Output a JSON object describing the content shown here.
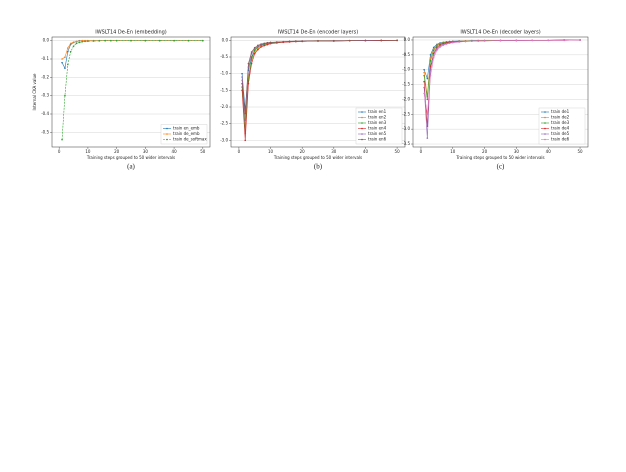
{
  "chart_data": [
    {
      "type": "line",
      "title": "IWSLT14 De-En (embedding)",
      "xlabel": "Training steps grouped to 50 wider intervals",
      "ylabel": "Internal CKA value",
      "caption": "(a)",
      "x": [
        1,
        2,
        3,
        4,
        5,
        6,
        7,
        8,
        9,
        10,
        12,
        14,
        16,
        18,
        20,
        25,
        30,
        35,
        40,
        45,
        50
      ],
      "xlim": [
        -2.5,
        52.5
      ],
      "xticks": [
        0,
        10,
        20,
        30,
        40,
        50
      ],
      "ylim": [
        -0.58,
        0.02
      ],
      "yticks": [
        {
          "value": 0,
          "label": "0.0"
        },
        -0.1,
        -0.2,
        -0.3,
        -0.4,
        -0.5
      ],
      "grid": true,
      "legend": "lower right",
      "series": [
        {
          "name": "train en_emb",
          "color": "#1f77b4",
          "style": "solid",
          "values": [
            -0.12,
            -0.15,
            -0.06,
            -0.02,
            -0.01,
            -0.005,
            0,
            0,
            0,
            0,
            0,
            0,
            0,
            0,
            0,
            0,
            0,
            0,
            0,
            0,
            0
          ]
        },
        {
          "name": "train de_emb",
          "color": "#ff7f0e",
          "style": "solid",
          "values": [
            -0.1,
            -0.09,
            -0.04,
            -0.015,
            -0.008,
            -0.004,
            -0.002,
            0,
            0,
            0,
            0,
            0,
            0,
            0,
            0,
            0,
            0,
            0,
            0,
            0,
            0
          ]
        },
        {
          "name": "train de_softmax",
          "color": "#2ca02c",
          "style": "dashed",
          "values": [
            -0.54,
            -0.3,
            -0.13,
            -0.06,
            -0.03,
            -0.015,
            -0.01,
            -0.006,
            -0.004,
            -0.003,
            -0.002,
            -0.001,
            0,
            0,
            0,
            0,
            0,
            0,
            0,
            0,
            0
          ]
        }
      ]
    },
    {
      "type": "line",
      "title": "IWSLT14 De-En (encoder layers)",
      "xlabel": "Training steps grouped to 50 wider intervals",
      "caption": "(b)",
      "x": [
        1,
        2,
        3,
        4,
        5,
        6,
        7,
        8,
        9,
        10,
        12,
        14,
        16,
        18,
        20,
        25,
        30,
        35,
        40,
        45,
        50
      ],
      "xlim": [
        -2.5,
        52.5
      ],
      "xticks": [
        0,
        10,
        20,
        30,
        40,
        50
      ],
      "ylim": [
        -3.2,
        0.1
      ],
      "yticks": [
        {
          "value": 0,
          "label": "0.0"
        },
        -0.5,
        {
          "value": -1,
          "label": "-1.0"
        },
        -1.5,
        {
          "value": -2,
          "label": "-2.0"
        },
        -2.5,
        {
          "value": -3,
          "label": "-3.0"
        }
      ],
      "grid": true,
      "legend": "lower right",
      "series": [
        {
          "name": "train en1",
          "color": "#1f77b4",
          "style": "solid",
          "values": [
            -1.0,
            -2.1,
            -0.9,
            -0.5,
            -0.3,
            -0.2,
            -0.15,
            -0.12,
            -0.1,
            -0.08,
            -0.06,
            -0.05,
            -0.04,
            -0.03,
            -0.03,
            -0.02,
            -0.02,
            -0.01,
            -0.01,
            0,
            0
          ]
        },
        {
          "name": "train en2",
          "color": "#ff7f0e",
          "style": "solid",
          "values": [
            -1.2,
            -2.6,
            -1.1,
            -0.6,
            -0.35,
            -0.25,
            -0.18,
            -0.14,
            -0.11,
            -0.09,
            -0.07,
            -0.05,
            -0.04,
            -0.03,
            -0.03,
            -0.02,
            -0.02,
            -0.01,
            -0.01,
            0,
            0
          ]
        },
        {
          "name": "train en3",
          "color": "#2ca02c",
          "style": "solid",
          "values": [
            -1.4,
            -2.8,
            -1.2,
            -0.55,
            -0.3,
            -0.2,
            -0.15,
            -0.12,
            -0.1,
            -0.08,
            -0.06,
            -0.05,
            -0.04,
            -0.03,
            -0.03,
            -0.02,
            -0.02,
            -0.01,
            -0.01,
            0,
            0
          ]
        },
        {
          "name": "train en4",
          "color": "#d62728",
          "style": "solid",
          "values": [
            -1.5,
            -3.0,
            -1.3,
            -0.7,
            -0.4,
            -0.28,
            -0.2,
            -0.16,
            -0.13,
            -0.1,
            -0.08,
            -0.06,
            -0.05,
            -0.04,
            -0.03,
            -0.02,
            -0.02,
            -0.01,
            -0.01,
            -0.01,
            0
          ]
        },
        {
          "name": "train en5",
          "color": "#9467bd",
          "style": "solid",
          "values": [
            -1.1,
            -2.4,
            -0.8,
            -0.4,
            -0.25,
            -0.18,
            -0.13,
            -0.1,
            -0.08,
            -0.07,
            -0.05,
            -0.04,
            -0.03,
            -0.03,
            -0.02,
            -0.02,
            -0.01,
            -0.01,
            -0.01,
            0,
            0
          ]
        },
        {
          "name": "train en6",
          "color": "#8c564b",
          "style": "solid",
          "values": [
            -1.3,
            -2.2,
            -0.7,
            -0.35,
            -0.22,
            -0.15,
            -0.11,
            -0.09,
            -0.07,
            -0.06,
            -0.05,
            -0.04,
            -0.03,
            -0.02,
            -0.02,
            -0.01,
            -0.01,
            -0.01,
            0,
            0,
            0
          ]
        }
      ]
    },
    {
      "type": "line",
      "title": "IWSLT14 De-En (decoder layers)",
      "xlabel": "Training steps grouped to 50 wider intervals",
      "caption": "(c)",
      "x": [
        1,
        2,
        3,
        4,
        5,
        6,
        7,
        8,
        9,
        10,
        12,
        14,
        16,
        18,
        20,
        25,
        30,
        35,
        40,
        45,
        50
      ],
      "xlim": [
        -2.5,
        52.5
      ],
      "xticks": [
        0,
        10,
        20,
        30,
        40,
        50
      ],
      "ylim": [
        -3.6,
        0.1
      ],
      "yticks": [
        {
          "value": 0,
          "label": "0.0"
        },
        -0.5,
        {
          "value": -1,
          "label": "-1.0"
        },
        -1.5,
        {
          "value": -2,
          "label": "-2.0"
        },
        -2.5,
        {
          "value": -3,
          "label": "-3.0"
        },
        -3.5
      ],
      "grid": true,
      "legend": "lower right",
      "series": [
        {
          "name": "train de1",
          "color": "#1f77b4",
          "style": "solid",
          "values": [
            -1.0,
            -1.3,
            -0.5,
            -0.25,
            -0.15,
            -0.1,
            -0.08,
            -0.06,
            -0.05,
            -0.04,
            -0.03,
            -0.03,
            -0.02,
            -0.02,
            -0.02,
            -0.01,
            -0.01,
            -0.01,
            -0.01,
            0,
            0
          ]
        },
        {
          "name": "train de2",
          "color": "#ff7f0e",
          "style": "solid",
          "values": [
            -1.1,
            -1.9,
            -0.6,
            -0.3,
            -0.18,
            -0.12,
            -0.09,
            -0.07,
            -0.06,
            -0.05,
            -0.04,
            -0.03,
            -0.03,
            -0.02,
            -0.02,
            -0.01,
            -0.01,
            -0.01,
            -0.01,
            0,
            0
          ]
        },
        {
          "name": "train de3",
          "color": "#2ca02c",
          "style": "solid",
          "values": [
            -1.2,
            -2.0,
            -0.7,
            -0.35,
            -0.2,
            -0.14,
            -0.1,
            -0.08,
            -0.07,
            -0.06,
            -0.05,
            -0.04,
            -0.03,
            -0.03,
            -0.02,
            -0.02,
            -0.01,
            -0.01,
            -0.01,
            0,
            0
          ]
        },
        {
          "name": "train de4",
          "color": "#d62728",
          "style": "solid",
          "values": [
            -1.4,
            -2.9,
            -0.9,
            -0.45,
            -0.25,
            -0.17,
            -0.12,
            -0.1,
            -0.08,
            -0.07,
            -0.05,
            -0.04,
            -0.04,
            -0.03,
            -0.03,
            -0.02,
            -0.02,
            -0.01,
            -0.01,
            -0.01,
            0
          ]
        },
        {
          "name": "train de5",
          "color": "#9467bd",
          "style": "solid",
          "values": [
            -1.6,
            -3.3,
            -1.0,
            -0.5,
            -0.3,
            -0.2,
            -0.15,
            -0.12,
            -0.1,
            -0.08,
            -0.06,
            -0.05,
            -0.04,
            -0.03,
            -0.03,
            -0.02,
            -0.02,
            -0.01,
            -0.01,
            -0.01,
            0
          ]
        },
        {
          "name": "train de6",
          "color": "#e377c2",
          "style": "solid",
          "values": [
            -1.8,
            -2.5,
            -1.2,
            -0.6,
            -0.35,
            -0.24,
            -0.18,
            -0.14,
            -0.11,
            -0.09,
            -0.07,
            -0.05,
            -0.04,
            -0.04,
            -0.03,
            -0.02,
            -0.02,
            -0.01,
            -0.01,
            -0.01,
            0
          ]
        }
      ]
    }
  ]
}
